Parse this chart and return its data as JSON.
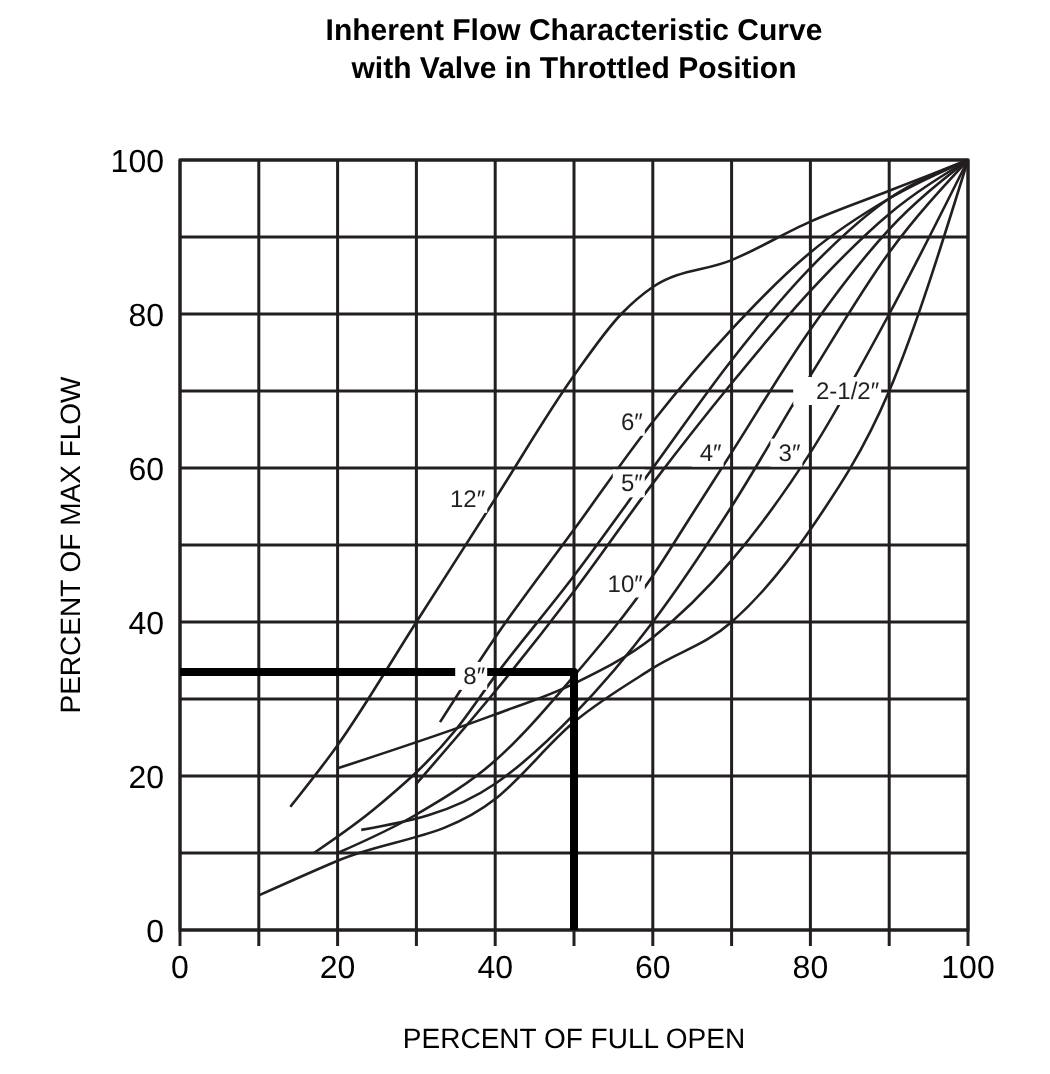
{
  "chart_data": {
    "type": "line",
    "title": "Inherent Flow Characteristic Curve\nwith Valve in Throttled Position",
    "xlabel": "PERCENT OF FULL OPEN",
    "ylabel": "PERCENT OF MAX FLOW",
    "xlim": [
      0,
      100
    ],
    "ylim": [
      0,
      100
    ],
    "xticks": [
      0,
      {
        "value": 10,
        "label": null
      },
      20,
      {
        "value": 30,
        "label": null
      },
      40,
      {
        "value": 50,
        "label": null
      },
      60,
      {
        "value": 70,
        "label": null
      },
      80,
      {
        "value": 90,
        "label": null
      },
      100
    ],
    "yticks": [
      0,
      {
        "value": 10,
        "label": null
      },
      20,
      {
        "value": 30,
        "label": null
      },
      40,
      {
        "value": 50,
        "label": null
      },
      60,
      {
        "value": 70,
        "label": null
      },
      80,
      {
        "value": 90,
        "label": null
      },
      100
    ],
    "grid": true,
    "marker": "none",
    "line_style": "solid",
    "series": [
      {
        "color": "#231f20",
        "x": [
          14,
          20,
          30,
          40,
          50,
          56,
          60,
          70,
          80,
          90,
          100
        ],
        "values": [
          16,
          24,
          40,
          56,
          72,
          80,
          83.5,
          87,
          92,
          96,
          100
        ]
      },
      {
        "color": "#231f20",
        "x": [
          33,
          40,
          50,
          60,
          70,
          80,
          90,
          100
        ],
        "values": [
          27,
          38,
          52,
          66,
          78,
          88,
          95,
          100
        ]
      },
      {
        "color": "#231f20",
        "x": [
          30,
          40,
          50,
          60,
          70,
          80,
          90,
          100
        ],
        "values": [
          19,
          31,
          44,
          58,
          71,
          83,
          93,
          100
        ]
      },
      {
        "color": "#231f20",
        "x": [
          17,
          25,
          35,
          40,
          50,
          60,
          70,
          80,
          90,
          100
        ],
        "values": [
          10,
          16,
          26,
          33,
          46,
          60,
          74,
          86,
          95,
          100
        ]
      },
      {
        "color": "#231f20",
        "x": [
          20,
          30,
          40,
          50,
          60,
          65,
          70,
          80,
          90,
          100
        ],
        "values": [
          10,
          15,
          22,
          33,
          46,
          54,
          62,
          78,
          91,
          100
        ]
      },
      {
        "color": "#231f20",
        "x": [
          23,
          40,
          50,
          60,
          70,
          80,
          90,
          100
        ],
        "values": [
          13,
          19,
          28,
          40,
          55,
          72,
          88,
          100
        ]
      },
      {
        "color": "#231f20",
        "x": [
          20,
          40,
          50,
          60,
          70,
          80,
          90,
          100
        ],
        "values": [
          21,
          28,
          32,
          38,
          48,
          62,
          80,
          100
        ]
      },
      {
        "color": "#231f20",
        "x": [
          10,
          20,
          40,
          50,
          60,
          70,
          80,
          90,
          100
        ],
        "values": [
          4.5,
          9,
          17,
          27,
          34,
          40,
          52,
          70,
          100
        ]
      },
      {
        "color": "#000000",
        "x": [
          0,
          50,
          50
        ],
        "values": [
          33.5,
          33.5,
          0
        ]
      }
    ],
    "annotations": [
      {
        "text": "12″",
        "x": 40,
        "y": 56
      },
      {
        "text": "6″",
        "x": 60,
        "y": 66
      },
      {
        "text": "5″",
        "x": 60,
        "y": 58
      },
      {
        "text": "4″",
        "x": 70,
        "y": 62
      },
      {
        "text": "10″",
        "x": 60,
        "y": 45
      },
      {
        "text": "3″",
        "x": 80,
        "y": 62
      },
      {
        "text": "2-1/2″",
        "x": 90,
        "y": 70
      },
      {
        "text": "8″",
        "x": 40,
        "y": 33
      }
    ]
  }
}
